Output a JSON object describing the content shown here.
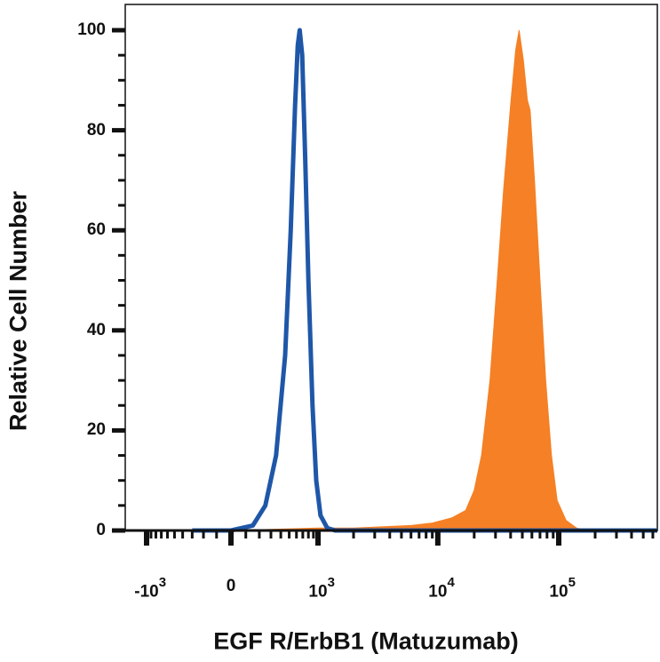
{
  "chart_data": {
    "type": "area",
    "xlabel": "EGF R/ErbB1 (Matuzumab)",
    "ylabel": "Relative Cell Number",
    "x_scale": "biexponential",
    "ylim": [
      0,
      100
    ],
    "yticks": [
      0,
      20,
      40,
      60,
      80,
      100
    ],
    "xticks": [
      {
        "base": "-10",
        "exp": "3",
        "value": -1000
      },
      {
        "base": "0",
        "exp": "",
        "value": 0
      },
      {
        "base": "10",
        "exp": "3",
        "value": 1000
      },
      {
        "base": "10",
        "exp": "4",
        "value": 10000
      },
      {
        "base": "10",
        "exp": "5",
        "value": 100000
      }
    ],
    "grid": false,
    "legend": "none",
    "series": [
      {
        "style": "outline",
        "color": "#1f57a8",
        "points": [
          [
            -300,
            0
          ],
          [
            0,
            0
          ],
          [
            150,
            1
          ],
          [
            250,
            5
          ],
          [
            350,
            15
          ],
          [
            450,
            35
          ],
          [
            520,
            60
          ],
          [
            580,
            85
          ],
          [
            620,
            97
          ],
          [
            650,
            100
          ],
          [
            690,
            95
          ],
          [
            740,
            75
          ],
          [
            800,
            50
          ],
          [
            880,
            25
          ],
          [
            960,
            10
          ],
          [
            1050,
            3
          ],
          [
            1200,
            0.5
          ],
          [
            1400,
            0
          ],
          [
            1000000,
            0
          ]
        ]
      },
      {
        "style": "filled",
        "color": "#f58025",
        "points": [
          [
            -300,
            0
          ],
          [
            0,
            0
          ],
          [
            1000,
            0.5
          ],
          [
            2000,
            0.5
          ],
          [
            6000,
            1
          ],
          [
            9000,
            1.5
          ],
          [
            13000,
            2.5
          ],
          [
            17000,
            4
          ],
          [
            20000,
            8
          ],
          [
            23000,
            15
          ],
          [
            27000,
            30
          ],
          [
            31000,
            50
          ],
          [
            35000,
            68
          ],
          [
            40000,
            85
          ],
          [
            44000,
            96
          ],
          [
            47000,
            100
          ],
          [
            51000,
            94
          ],
          [
            55000,
            86
          ],
          [
            58000,
            84
          ],
          [
            63000,
            70
          ],
          [
            70000,
            50
          ],
          [
            78000,
            30
          ],
          [
            87000,
            15
          ],
          [
            97000,
            6
          ],
          [
            115000,
            2
          ],
          [
            140000,
            0.5
          ],
          [
            170000,
            0
          ],
          [
            1000000,
            0
          ]
        ]
      }
    ]
  }
}
